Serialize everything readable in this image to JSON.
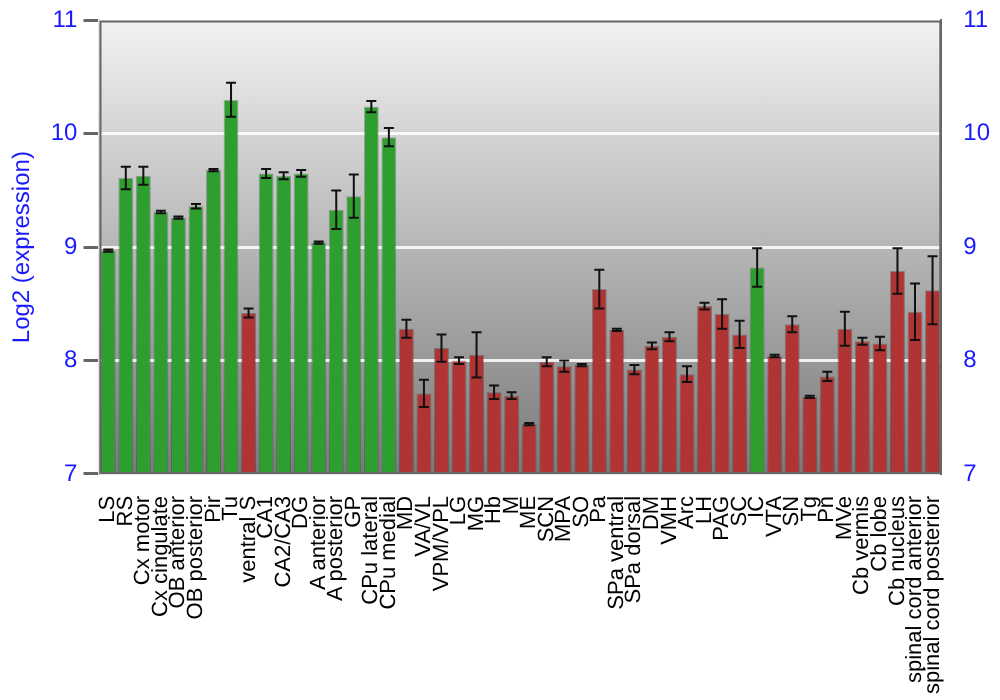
{
  "chart_data": {
    "type": "bar",
    "ylabel": "Log2 (expression)",
    "categories": [
      "LS",
      "RS",
      "Cx motor",
      "Cx cingulate",
      "OB anterior",
      "OB posterior",
      "Pir",
      "Tu",
      "ventral S",
      "CA1",
      "CA2/CA3",
      "DG",
      "A anterior",
      "A posterior",
      "GP",
      "CPu lateral",
      "CPu medial",
      "MD",
      "VA/VL",
      "VPM/VPL",
      "LG",
      "MG",
      "Hb",
      "M",
      "ME",
      "SCN",
      "MPA",
      "SO",
      "Pa",
      "SPa ventral",
      "SPa dorsal",
      "DM",
      "VMH",
      "Arc",
      "LH",
      "PAG",
      "SC",
      "IC",
      "VTA",
      "SN",
      "Tg",
      "Pn",
      "MVe",
      "Cb vermis",
      "Cb lobe",
      "Cb nucleus",
      "spinal cord anterior",
      "spinal cord posterior"
    ],
    "values": [
      8.97,
      9.61,
      9.63,
      9.31,
      9.26,
      9.36,
      9.68,
      10.3,
      8.42,
      9.65,
      9.63,
      9.65,
      9.04,
      9.33,
      9.45,
      10.24,
      9.97,
      8.28,
      7.71,
      8.11,
      8.0,
      8.05,
      7.72,
      7.69,
      7.44,
      7.99,
      7.95,
      7.96,
      8.63,
      8.27,
      7.92,
      8.13,
      8.21,
      7.88,
      8.48,
      8.41,
      8.23,
      8.82,
      8.04,
      8.32,
      7.68,
      7.86,
      8.28,
      8.17,
      8.15,
      8.79,
      8.43,
      8.62
    ],
    "errors": [
      0.01,
      0.1,
      0.08,
      0.01,
      0.01,
      0.02,
      0.01,
      0.15,
      0.04,
      0.04,
      0.03,
      0.03,
      0.01,
      0.17,
      0.19,
      0.05,
      0.08,
      0.08,
      0.12,
      0.12,
      0.03,
      0.2,
      0.06,
      0.03,
      0.01,
      0.04,
      0.05,
      0.01,
      0.17,
      0.01,
      0.04,
      0.03,
      0.04,
      0.07,
      0.03,
      0.13,
      0.12,
      0.17,
      0.01,
      0.07,
      0.01,
      0.04,
      0.15,
      0.03,
      0.06,
      0.2,
      0.25,
      0.3
    ],
    "colors": [
      "#2e9e2e",
      "#2e9e2e",
      "#2e9e2e",
      "#2e9e2e",
      "#2e9e2e",
      "#2e9e2e",
      "#2e9e2e",
      "#2e9e2e",
      "#b03434",
      "#2e9e2e",
      "#2e9e2e",
      "#2e9e2e",
      "#2e9e2e",
      "#2e9e2e",
      "#2e9e2e",
      "#2e9e2e",
      "#2e9e2e",
      "#b03434",
      "#b03434",
      "#b03434",
      "#b03434",
      "#b03434",
      "#b03434",
      "#b03434",
      "#b03434",
      "#b03434",
      "#b03434",
      "#b03434",
      "#b03434",
      "#b03434",
      "#b03434",
      "#b03434",
      "#b03434",
      "#b03434",
      "#b03434",
      "#b03434",
      "#b03434",
      "#2e9e2e",
      "#b03434",
      "#b03434",
      "#b03434",
      "#b03434",
      "#b03434",
      "#b03434",
      "#b03434",
      "#b03434",
      "#b03434",
      "#b03434"
    ],
    "ylim": [
      7,
      11
    ],
    "yticks": [
      7,
      8,
      9,
      10,
      11
    ],
    "y2lim": [
      7,
      11
    ],
    "y2ticks": [
      7,
      8,
      9,
      10,
      11
    ],
    "grid": "y",
    "legend": false
  }
}
